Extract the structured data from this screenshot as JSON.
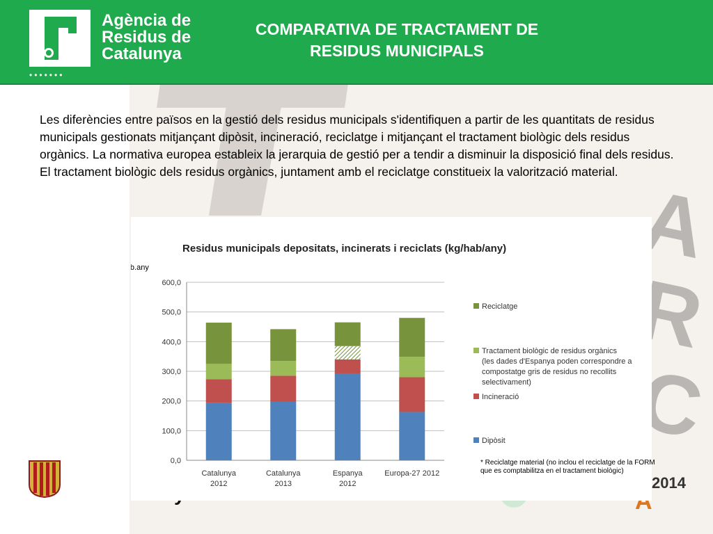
{
  "header": {
    "logo_line1": "Agència de",
    "logo_line2": "Residus de",
    "logo_line3": "Catalunya",
    "logo_dots": "•••••••",
    "title_line1": "COMPARATIVA DE  TRACTAMENT DE",
    "title_line2": "RESIDUS MUNICIPALS",
    "bg_color": "#1faa4e"
  },
  "intro_text": "Les diferències entre països en la gestió dels residus municipals s'identifiquen a partir de les quantitats de residus municipals gestionats  mitjançant dipòsit, incineració, reciclatge i mitjançant el tractament biològic dels residus orgànics.  La normativa europea estableix la jerarquia de gestió per a tendir a disminuir la disposició final dels residus. El tractament  biològic dels residus orgànics, juntament amb el reciclatge constitueix la valorització  material.",
  "footnote_line1": "* Reciclatge material (no inclou el reciclatge de la FORM",
  "footnote_line2": "que es comptabilitza en el tractament biològic)",
  "background": {
    "year": "2014"
  },
  "chart_data": {
    "type": "bar",
    "stacked": true,
    "title": "Residus municipals depositats, incinerats  i reciclats (kg/hab/any)",
    "ylabel": "kg/hab.any",
    "ylim": [
      0,
      600
    ],
    "yticks": [
      "0,0",
      "100,0",
      "200,0",
      "300,0",
      "400,0",
      "500,0",
      "600,0"
    ],
    "grid": true,
    "legend_position": "right",
    "categories": [
      [
        "Catalunya",
        "2012"
      ],
      [
        "Catalunya",
        "2013"
      ],
      [
        "Espanya",
        "2012"
      ],
      [
        "Europa-27 2012",
        ""
      ]
    ],
    "series": [
      {
        "name": "Dipòsit",
        "color": "#4f81bd",
        "values": [
          193,
          198,
          293,
          163
        ]
      },
      {
        "name": "Incineració",
        "color": "#c0504d",
        "values": [
          80,
          87,
          47,
          117
        ]
      },
      {
        "name": "Tractament biològic de residus orgànics",
        "name_lines": [
          "Tractament biològic de residus orgànics",
          "(les dades d'Espanya poden correspondre a",
          "compostatge gris de residus no recollits",
          "selectivament)"
        ],
        "color": "#9bbb59",
        "values": [
          52,
          50,
          45,
          69
        ],
        "hatched_index": 2
      },
      {
        "name": "Reciclatge",
        "color": "#77933c",
        "values": [
          139,
          107,
          80,
          131
        ]
      }
    ]
  }
}
